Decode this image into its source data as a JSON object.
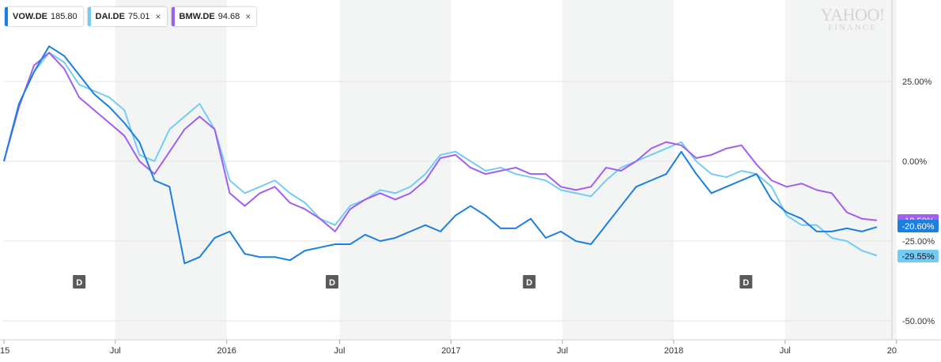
{
  "legend": [
    {
      "symbol": "VOW.DE",
      "price": "185.80",
      "color": "#1b7fe0",
      "closable": false
    },
    {
      "symbol": "DAI.DE",
      "price": "75.01",
      "color": "#74ccf5",
      "closable": true,
      "close_glyph": "×"
    },
    {
      "symbol": "BMW.DE",
      "price": "94.68",
      "color": "#a05ff0",
      "closable": true,
      "close_glyph": "×"
    }
  ],
  "brand": {
    "line1": "YAHOO!",
    "line2": "FINANCE"
  },
  "chart_data": {
    "type": "line",
    "ylabel": "",
    "xlabel": "",
    "ylim": [
      -60,
      50
    ],
    "xlim": [
      0,
      59
    ],
    "y_ticks": [
      {
        "value": 25,
        "label": "25.00%"
      },
      {
        "value": 0,
        "label": "0.00%"
      },
      {
        "value": -25,
        "label": "-25.00%"
      },
      {
        "value": -50,
        "label": "-50.00%"
      }
    ],
    "x_ticks": [
      {
        "x": 0,
        "label": "15"
      },
      {
        "x": 7.4,
        "label": "Jul"
      },
      {
        "x": 14.8,
        "label": "2016"
      },
      {
        "x": 22.3,
        "label": "Jul"
      },
      {
        "x": 29.7,
        "label": "2017"
      },
      {
        "x": 37.1,
        "label": "Jul"
      },
      {
        "x": 44.5,
        "label": "2018"
      },
      {
        "x": 51.9,
        "label": "Jul"
      },
      {
        "x": 59.3,
        "label": "20"
      }
    ],
    "grid": true,
    "shaded_bands": [
      [
        7.4,
        14.8
      ],
      [
        22.3,
        29.7
      ],
      [
        37.1,
        44.5
      ],
      [
        51.9,
        59.3
      ]
    ],
    "dividend_markers": [
      {
        "x": 5,
        "label": "D"
      },
      {
        "x": 21.8,
        "label": "D"
      },
      {
        "x": 34.9,
        "label": "D"
      },
      {
        "x": 49.3,
        "label": "D"
      }
    ],
    "end_labels": [
      {
        "series": "BMW.DE",
        "value": -18.5,
        "label": "-18.50%"
      },
      {
        "series": "VOW.DE",
        "value": -20.6,
        "label": "-20.60%"
      },
      {
        "series": "DAI.DE",
        "value": -29.55,
        "label": "-29.55%"
      }
    ],
    "series": [
      {
        "name": "VOW.DE",
        "color": "#1b7fe0",
        "values": [
          0,
          18,
          28,
          36,
          33,
          27,
          21,
          17,
          12,
          6,
          -6,
          -8,
          -32,
          -30,
          -24,
          -22,
          -29,
          -30,
          -30,
          -31,
          -28,
          -27,
          -26,
          -26,
          -23,
          -25,
          -24,
          -22,
          -20,
          -22,
          -17,
          -14,
          -17,
          -21,
          -21,
          -18,
          -24,
          -22,
          -25,
          -26,
          -20,
          -14,
          -8,
          -6,
          -4,
          3,
          -4,
          -10,
          -8,
          -6,
          -4,
          -12,
          -16,
          -18,
          -22,
          -22,
          -21,
          -22,
          -20.6
        ]
      },
      {
        "name": "DAI.DE",
        "color": "#74ccf5",
        "values": [
          0,
          18,
          28,
          34,
          31,
          24,
          22,
          20,
          16,
          2,
          0,
          10,
          14,
          18,
          10,
          -6,
          -10,
          -8,
          -6,
          -10,
          -13,
          -18,
          -20,
          -14,
          -12,
          -9,
          -10,
          -8,
          -4,
          2,
          3,
          0,
          -3,
          -2,
          -4,
          -5,
          -6,
          -9,
          -10,
          -11,
          -6,
          -2,
          0,
          2,
          4,
          6,
          0,
          -4,
          -5,
          -3,
          -4,
          -8,
          -17,
          -20,
          -20,
          -24,
          -25,
          -28,
          -29.55
        ]
      },
      {
        "name": "BMW.DE",
        "color": "#a05ff0",
        "values": [
          0,
          17,
          30,
          34,
          29,
          20,
          16,
          12,
          8,
          0,
          -4,
          3,
          10,
          14,
          10,
          -10,
          -14,
          -10,
          -8,
          -13,
          -15,
          -18,
          -22,
          -15,
          -12,
          -10,
          -12,
          -10,
          -6,
          1,
          2,
          -2,
          -4,
          -3,
          -2,
          -4,
          -4,
          -8,
          -9,
          -8,
          -2,
          -3,
          0,
          4,
          6,
          5,
          1,
          2,
          4,
          5,
          -1,
          -6,
          -8,
          -7,
          -9,
          -10,
          -16,
          -18,
          -18.5
        ]
      }
    ]
  }
}
